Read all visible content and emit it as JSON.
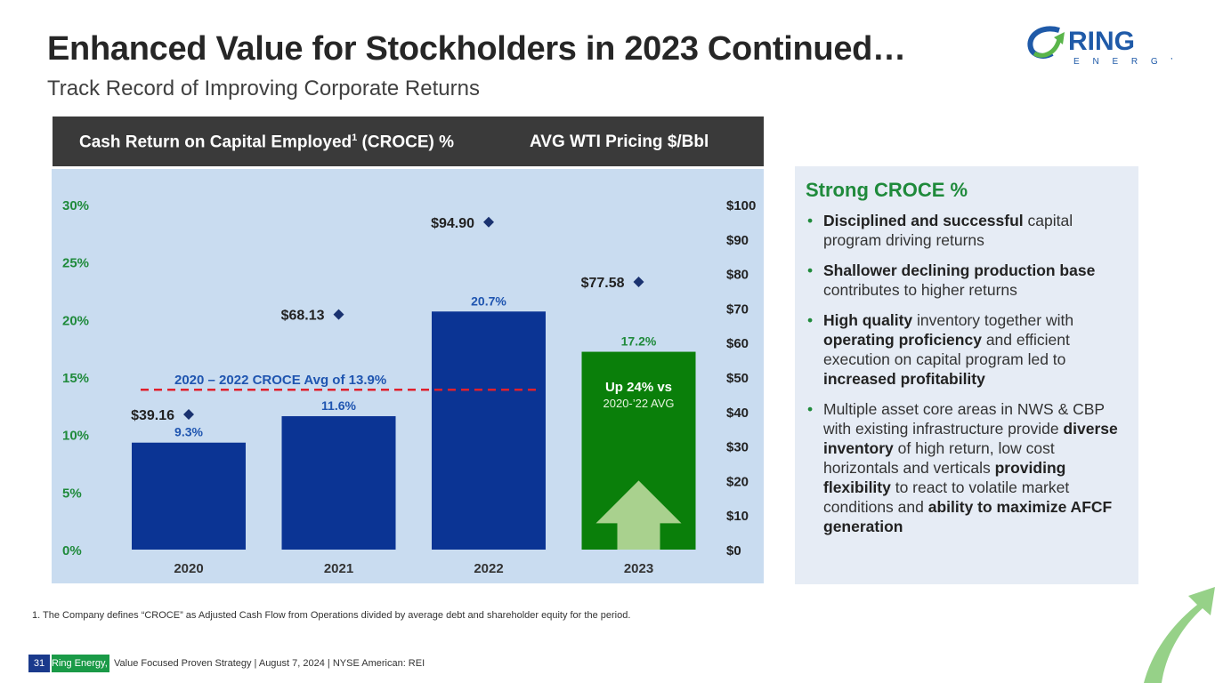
{
  "title": "Enhanced Value for Stockholders in 2023 Continued…",
  "subtitle": "Track Record of Improving Corporate Returns",
  "logo": {
    "text": "RING",
    "sub": "E N E R G Y"
  },
  "chart_header": {
    "left": "Cash Return on Capital Employed",
    "left_sup": "1",
    "left_end": " (CROCE) %",
    "right": "AVG WTI Pricing $/Bbl"
  },
  "chart_data": {
    "type": "bar",
    "categories": [
      "2020",
      "2021",
      "2022",
      "2023"
    ],
    "series": [
      {
        "name": "Cash Return on Capital Employed (CROCE) %",
        "axis": "left",
        "values": [
          9.3,
          11.6,
          20.7,
          17.2
        ],
        "labels": [
          "9.3%",
          "11.6%",
          "20.7%",
          "17.2%"
        ],
        "colors": [
          "#0b3494",
          "#0b3494",
          "#0b3494",
          "#0a7f0a"
        ]
      },
      {
        "name": "AVG WTI Pricing $/Bbl",
        "axis": "right",
        "type": "scatter",
        "values": [
          39.16,
          68.13,
          94.9,
          77.58
        ],
        "labels": [
          "$39.16",
          "$68.13",
          "$94.90",
          "$77.58"
        ],
        "color": "#1a3270"
      }
    ],
    "left_ylim": [
      0,
      30
    ],
    "left_ticks": [
      "0%",
      "5%",
      "10%",
      "15%",
      "20%",
      "25%",
      "30%"
    ],
    "right_ylim": [
      0,
      100
    ],
    "right_ticks": [
      "$0",
      "$10",
      "$20",
      "$30",
      "$40",
      "$50",
      "$60",
      "$70",
      "$80",
      "$90",
      "$100"
    ],
    "reference_line": {
      "value": 13.9,
      "label": "2020 – 2022 CROCE Avg of 13.9%",
      "color": "#e0202c"
    },
    "annotation": {
      "line1": "Up 24% vs",
      "line2": "2020-’22 AVG"
    },
    "grid": false
  },
  "side": {
    "title": "Strong CROCE %",
    "bullets": [
      [
        {
          "b": "Disciplined and successful"
        },
        {
          "t": " capital program driving returns"
        }
      ],
      [
        {
          "b": "Shallower declining production base"
        },
        {
          "t": " contributes to higher returns"
        }
      ],
      [
        {
          "b": "High quality"
        },
        {
          "t": " inventory together with "
        },
        {
          "b": "operating proficiency"
        },
        {
          "t": " and efficient execution on capital program led to "
        },
        {
          "b": "increased profitability"
        }
      ],
      [
        {
          "t": "Multiple asset core areas in NWS & CBP with existing infrastructure provide "
        },
        {
          "b": "diverse inventory"
        },
        {
          "t": " of high return, low cost horizontals and verticals "
        },
        {
          "b": "providing flexibility"
        },
        {
          "t": " to react to volatile market conditions and "
        },
        {
          "b": "ability to maximize AFCF generation"
        }
      ]
    ]
  },
  "footnote": "1.   The Company defines “CROCE” as Adjusted Cash Flow from Operations divided by average debt and shareholder equity for the period.",
  "footer": {
    "page": "31",
    "company": "Ring Energy, Inc.",
    "text": "Value Focused Proven Strategy  | August 7, 2024 |  NYSE American: REI"
  }
}
